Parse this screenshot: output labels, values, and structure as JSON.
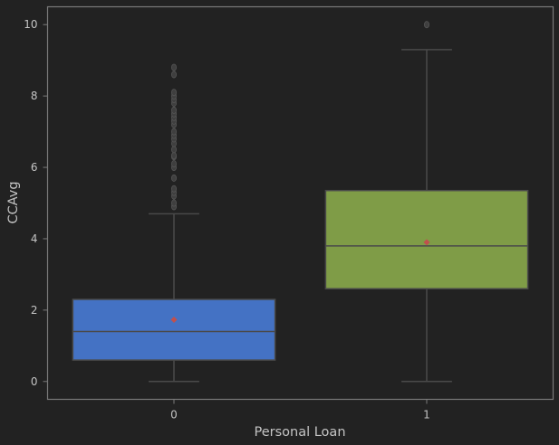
{
  "colors": {
    "background": "#222222",
    "axes_frame": "#7a7a7a",
    "whisker": "#4a4a4a",
    "text": "#c4c4c4",
    "mean_marker": "#c0504d"
  },
  "chart_data": {
    "type": "box",
    "title": "",
    "xlabel": "Personal Loan",
    "ylabel": "CCAvg",
    "ylim": [
      -0.5,
      10.5
    ],
    "yticks": [
      0,
      2,
      4,
      6,
      8,
      10
    ],
    "grid": false,
    "categories": [
      "0",
      "1"
    ],
    "boxes": [
      {
        "category": "0",
        "min": 0.0,
        "q1": 0.6,
        "median": 1.4,
        "q3": 2.3,
        "max": 4.7,
        "mean": 1.73,
        "color": "#4472c4",
        "outliers": [
          4.9,
          5.0,
          5.2,
          5.3,
          5.4,
          5.7,
          6.0,
          6.1,
          6.3,
          6.33,
          6.5,
          6.67,
          6.8,
          6.9,
          7.0,
          7.2,
          7.3,
          7.4,
          7.5,
          7.6,
          7.8,
          7.9,
          8.0,
          8.1,
          8.6,
          8.8
        ]
      },
      {
        "category": "1",
        "min": 0.0,
        "q1": 2.6,
        "median": 3.8,
        "q3": 5.35,
        "max": 9.3,
        "mean": 3.9,
        "color": "#7f9c47",
        "outliers": [
          10.0
        ]
      }
    ]
  }
}
